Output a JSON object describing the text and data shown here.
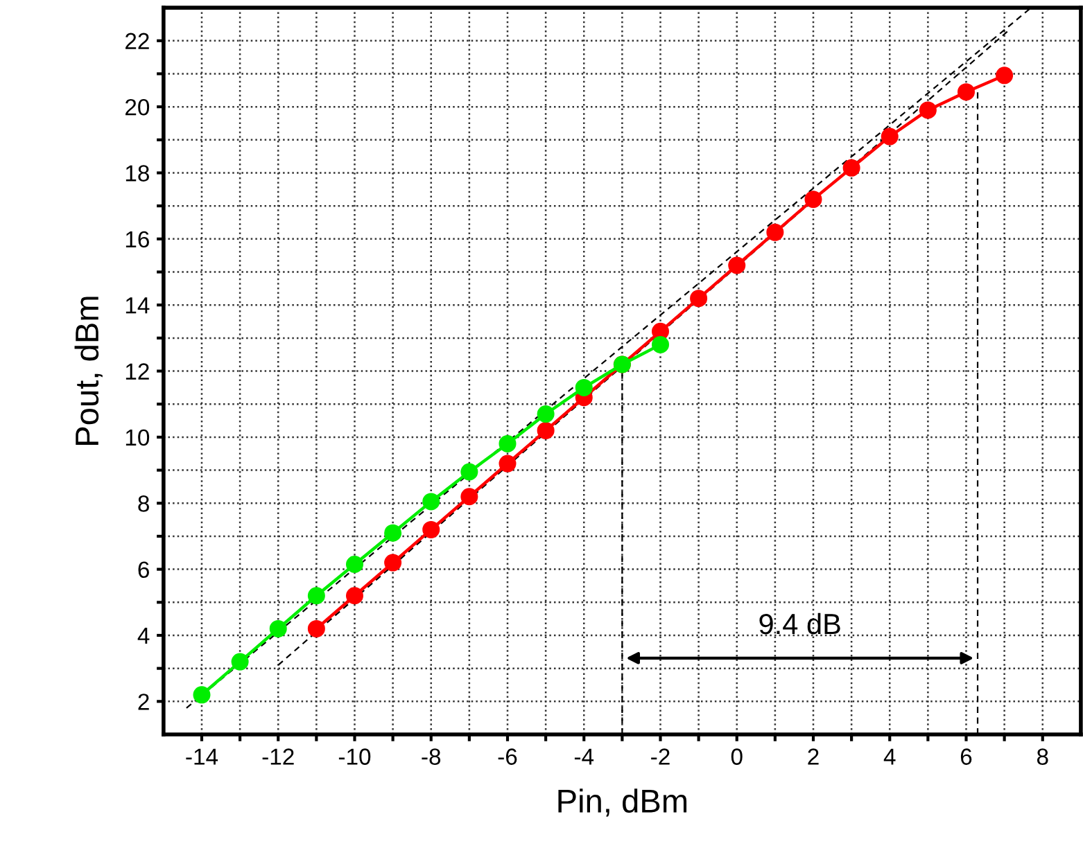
{
  "chart_data": {
    "type": "line",
    "xlabel": "Pin, dBm",
    "ylabel": "Pout, dBm",
    "xlim": [
      -15,
      9
    ],
    "ylim": [
      1,
      23
    ],
    "xticks": [
      -14,
      {
        "value": -13,
        "label": null
      },
      -12,
      {
        "value": -11,
        "label": null
      },
      -10,
      {
        "value": -9,
        "label": null
      },
      -8,
      {
        "value": -7,
        "label": null
      },
      -6,
      {
        "value": -5,
        "label": null
      },
      -4,
      {
        "value": -3,
        "label": null
      },
      -2,
      {
        "value": -1,
        "label": null
      },
      0,
      {
        "value": 1,
        "label": null
      },
      2,
      {
        "value": 3,
        "label": null
      },
      4,
      {
        "value": 5,
        "label": null
      },
      6,
      {
        "value": 7,
        "label": null
      },
      8
    ],
    "yticks": [
      2,
      {
        "value": 3,
        "label": null
      },
      4,
      {
        "value": 5,
        "label": null
      },
      6,
      {
        "value": 7,
        "label": null
      },
      8,
      {
        "value": 9,
        "label": null
      },
      10,
      {
        "value": 11,
        "label": null
      },
      12,
      {
        "value": 13,
        "label": null
      },
      14,
      {
        "value": 15,
        "label": null
      },
      16,
      {
        "value": 17,
        "label": null
      },
      18,
      {
        "value": 19,
        "label": null
      },
      20,
      {
        "value": 21,
        "label": null
      },
      22
    ],
    "grid": true,
    "marker": "circle",
    "line_style": "solid",
    "series": [
      {
        "color": "#ff0000",
        "x": [
          -11,
          -10,
          -9,
          -8,
          -7,
          -6,
          -5,
          -4,
          -3,
          -2,
          -1,
          0,
          1,
          2,
          3,
          4,
          5,
          6,
          7
        ],
        "values": [
          4.2,
          5.2,
          6.2,
          7.2,
          8.2,
          9.2,
          10.2,
          11.2,
          12.2,
          13.2,
          14.2,
          15.2,
          16.2,
          17.2,
          18.15,
          19.1,
          19.9,
          20.45,
          20.95
        ]
      },
      {
        "color": "#00ee00",
        "x": [
          -14,
          -13,
          -12,
          -11,
          -10,
          -9,
          -8,
          -7,
          -6,
          -5,
          -4,
          -3,
          -2
        ],
        "values": [
          2.2,
          3.2,
          4.2,
          5.2,
          6.15,
          7.1,
          8.05,
          8.95,
          9.8,
          10.7,
          11.5,
          12.2,
          12.8
        ]
      },
      {
        "color": "#000000",
        "marker": "none",
        "line_style": "dashed",
        "x": [
          -14.4,
          7.7
        ],
        "values": [
          1.8,
          23
        ]
      },
      {
        "color": "#000000",
        "marker": "none",
        "line_style": "dashed",
        "x": [
          -12,
          7.1
        ],
        "values": [
          3.1,
          22.3
        ]
      },
      {
        "color": "#000000",
        "marker": "none",
        "line_style": "dashed",
        "x": [
          -3,
          -3
        ],
        "values": [
          1,
          12.2
        ]
      },
      {
        "color": "#000000",
        "marker": "none",
        "line_style": "dashed",
        "x": [
          6.3,
          6.3
        ],
        "values": [
          1,
          20.5
        ]
      }
    ],
    "annotations": [
      "9.4 dB"
    ]
  }
}
